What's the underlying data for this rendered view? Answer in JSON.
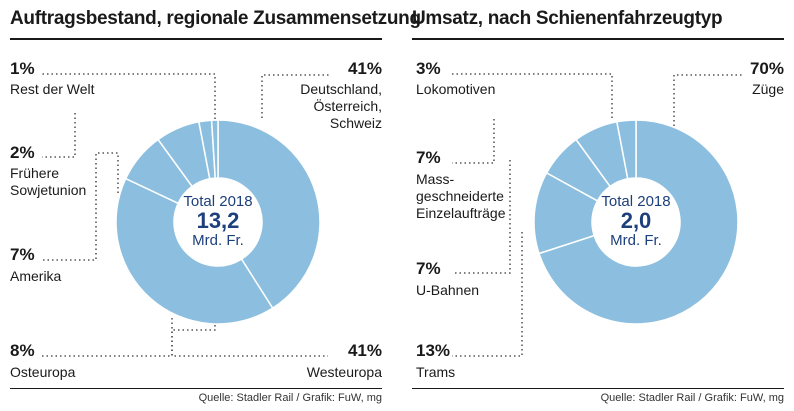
{
  "chart_data": [
    {
      "type": "pie",
      "title": "Auftragsbestand, regionale Zusammensetzung",
      "center": {
        "total_label": "Total 2018",
        "value": "13,2",
        "unit": "Mrd. Fr."
      },
      "slices": [
        {
          "label": "Deutschland, Österreich, Schweiz",
          "label_lines": [
            "Deutschland,",
            "Österreich,",
            "Schweiz"
          ],
          "pct_label": "41%",
          "value": 41
        },
        {
          "label": "Westeuropa",
          "label_lines": [
            "Westeuropa"
          ],
          "pct_label": "41%",
          "value": 41
        },
        {
          "label": "Osteuropa",
          "label_lines": [
            "Osteuropa"
          ],
          "pct_label": "8%",
          "value": 8
        },
        {
          "label": "Amerika",
          "label_lines": [
            "Amerika"
          ],
          "pct_label": "7%",
          "value": 7
        },
        {
          "label": "Frühere Sowjetunion",
          "label_lines": [
            "Frühere",
            "Sowjetunion"
          ],
          "pct_label": "2%",
          "value": 2
        },
        {
          "label": "Rest der Welt",
          "label_lines": [
            "Rest der Welt"
          ],
          "pct_label": "1%",
          "value": 1
        }
      ],
      "source": "Quelle: Stadler Rail / Grafik: FuW, mg"
    },
    {
      "type": "pie",
      "title": "Umsatz, nach Schienenfahrzeugtyp",
      "center": {
        "total_label": "Total 2018",
        "value": "2,0",
        "unit": "Mrd. Fr."
      },
      "slices": [
        {
          "label": "Züge",
          "label_lines": [
            "Züge"
          ],
          "pct_label": "70%",
          "value": 70
        },
        {
          "label": "Trams",
          "label_lines": [
            "Trams"
          ],
          "pct_label": "13%",
          "value": 13
        },
        {
          "label": "U-Bahnen",
          "label_lines": [
            "U-Bahnen"
          ],
          "pct_label": "7%",
          "value": 7
        },
        {
          "label": "Massgeschneiderte Einzelaufträge",
          "label_lines": [
            "Mass-",
            "geschneiderte",
            "Einzelaufträge"
          ],
          "pct_label": "7%",
          "value": 7
        },
        {
          "label": "Lokomotiven",
          "label_lines": [
            "Lokomotiven"
          ],
          "pct_label": "3%",
          "value": 3
        }
      ],
      "source": "Quelle: Stadler Rail / Grafik: FuW, mg"
    }
  ],
  "colors": {
    "slice_fill": "#8cbfdf",
    "slice_border": "#ffffff",
    "center_text": "#1d3f7c",
    "leader": "#333333"
  }
}
